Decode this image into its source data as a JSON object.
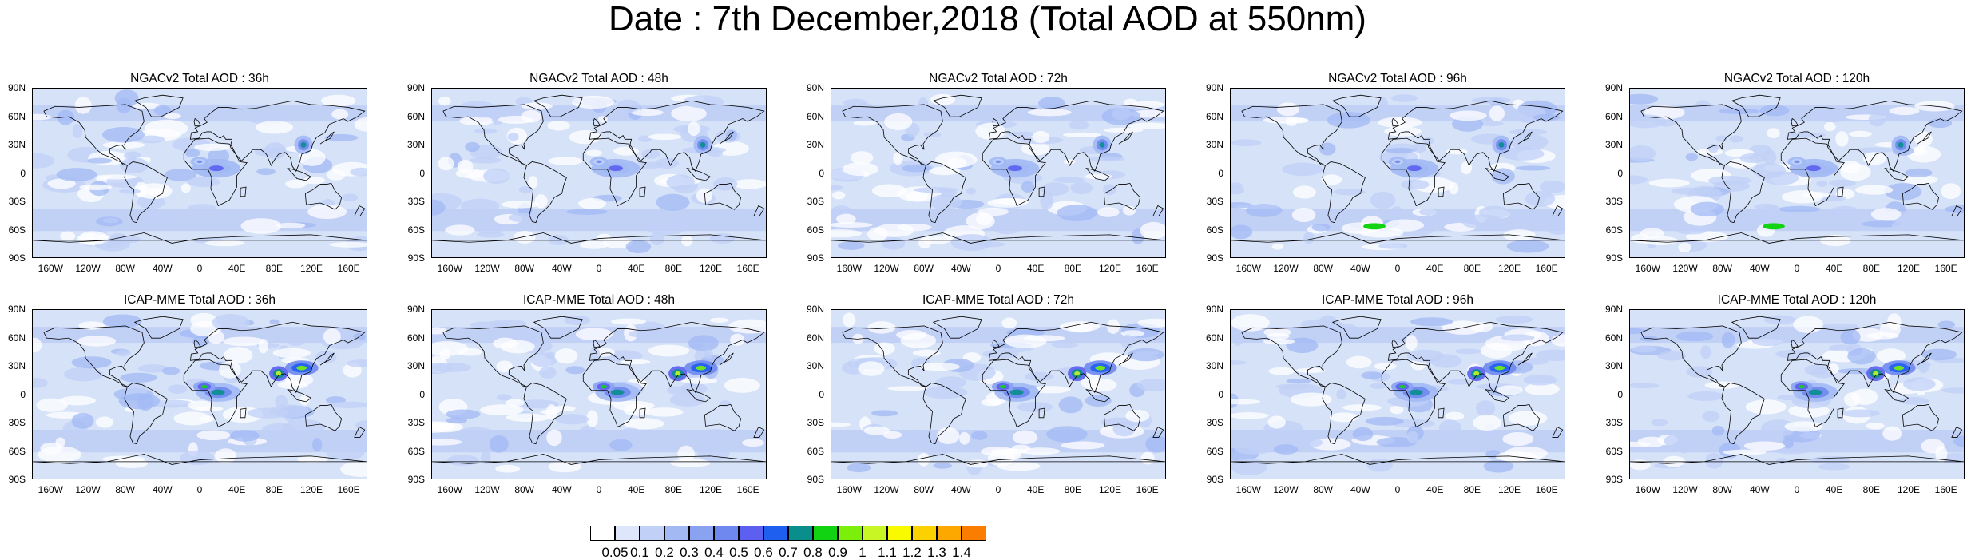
{
  "title": "Date : 7th December,2018 (Total AOD at 550nm)",
  "lat_labels": [
    "90N",
    "60N",
    "30N",
    "0",
    "30S",
    "60S",
    "90S"
  ],
  "lon_labels": [
    "160W",
    "120W",
    "80W",
    "40W",
    "0",
    "40E",
    "80E",
    "120E",
    "160E"
  ],
  "panels": [
    {
      "title": "NGACv2 Total AOD : 36h",
      "model": "NGACv2",
      "lead_hours": 36
    },
    {
      "title": "NGACv2 Total AOD : 48h",
      "model": "NGACv2",
      "lead_hours": 48
    },
    {
      "title": "NGACv2 Total AOD : 72h",
      "model": "NGACv2",
      "lead_hours": 72
    },
    {
      "title": "NGACv2 Total AOD : 96h",
      "model": "NGACv2",
      "lead_hours": 96
    },
    {
      "title": "NGACv2 Total AOD : 120h",
      "model": "NGACv2",
      "lead_hours": 120
    },
    {
      "title": "ICAP-MME Total AOD : 36h",
      "model": "ICAP-MME",
      "lead_hours": 36
    },
    {
      "title": "ICAP-MME Total AOD : 48h",
      "model": "ICAP-MME",
      "lead_hours": 48
    },
    {
      "title": "ICAP-MME Total AOD : 72h",
      "model": "ICAP-MME",
      "lead_hours": 72
    },
    {
      "title": "ICAP-MME Total AOD : 96h",
      "model": "ICAP-MME",
      "lead_hours": 96
    },
    {
      "title": "ICAP-MME Total AOD : 120h",
      "model": "ICAP-MME",
      "lead_hours": 120
    }
  ],
  "colorbar": {
    "labels": [
      "0.05",
      "0.1",
      "0.2",
      "0.3",
      "0.4",
      "0.5",
      "0.6",
      "0.7",
      "0.8",
      "0.9",
      "1",
      "1.1",
      "1.2",
      "1.3",
      "1.4"
    ],
    "colors": [
      "#ffffff",
      "#dde6fb",
      "#c0d0f7",
      "#a2b9f4",
      "#8aa3f1",
      "#6f88ef",
      "#5c5ff0",
      "#1f5ff0",
      "#0a8e8c",
      "#12d312",
      "#7bee0a",
      "#c8f524",
      "#f9f900",
      "#fbd200",
      "#fca800",
      "#fb7d00",
      "#f93a12"
    ]
  },
  "colors": {
    "ocean_low": "#d6e2f8",
    "background_low": "#eaf0fc",
    "high_band": "#9ab0f0"
  }
}
